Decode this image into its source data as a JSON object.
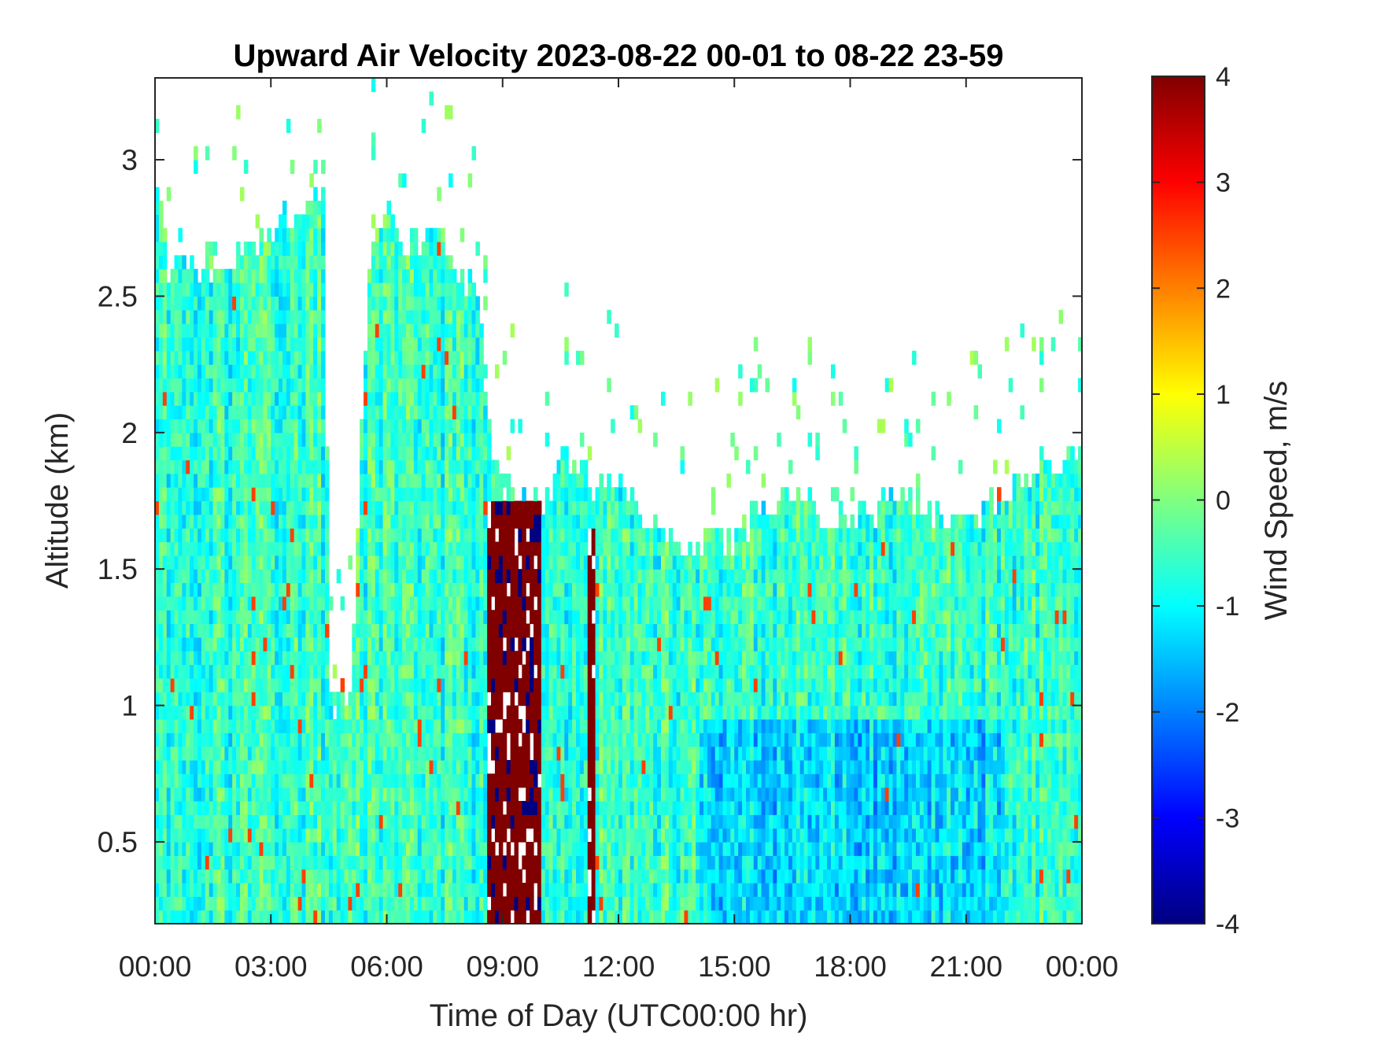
{
  "chart_data": {
    "type": "heatmap",
    "title": "Upward Air Velocity 2023-08-22 00-01 to 08-22 23-59",
    "xlabel": "Time of Day (UTC00:00 hr)",
    "ylabel": "Altitude (km)",
    "x_unit": "hours",
    "xlim": [
      0,
      24
    ],
    "ylim": [
      0.2,
      3.3
    ],
    "x_ticks": [
      0,
      3,
      6,
      9,
      12,
      15,
      18,
      21,
      24
    ],
    "x_tick_labels": [
      "00:00",
      "03:00",
      "06:00",
      "09:00",
      "12:00",
      "15:00",
      "18:00",
      "21:00",
      "00:00"
    ],
    "y_ticks": [
      0.5,
      1,
      1.5,
      2,
      2.5,
      3
    ],
    "y_tick_labels": [
      "0.5",
      "1",
      "1.5",
      "2",
      "2.5",
      "3"
    ],
    "colorbar": {
      "label": "Wind Speed, m/s",
      "colormap": "jet",
      "clim": [
        -4,
        4
      ],
      "ticks": [
        4,
        3,
        2,
        1,
        0,
        -1,
        -2,
        -3,
        -4
      ],
      "tick_labels": [
        "4",
        "3",
        "2",
        "1",
        "0",
        "-1",
        "-2",
        "-3",
        "-4"
      ]
    },
    "grid": false,
    "data_top_profile": {
      "description_hours": [
        0.0,
        0.3,
        0.8,
        1.5,
        2.5,
        3.3,
        4.3,
        4.5,
        5.0,
        5.5,
        6.0,
        6.5,
        7.0,
        7.5,
        8.0,
        8.3,
        8.6,
        9.0,
        9.5,
        10.2,
        10.5,
        11.0,
        11.3,
        11.7,
        12.0,
        12.5,
        13.0,
        13.5,
        14.0,
        14.5,
        15.0,
        15.5,
        16.0,
        16.5,
        17.0,
        17.5,
        18.0,
        18.5,
        19.0,
        19.5,
        20.0,
        20.5,
        21.0,
        21.5,
        22.0,
        22.5,
        23.0,
        23.5,
        24.0
      ],
      "top_km": [
        2.85,
        2.6,
        2.62,
        2.58,
        2.65,
        2.78,
        2.85,
        1.0,
        1.0,
        2.6,
        2.78,
        2.65,
        2.7,
        2.65,
        2.55,
        2.45,
        2.0,
        1.72,
        1.72,
        1.72,
        1.9,
        1.85,
        1.8,
        1.8,
        1.8,
        1.7,
        1.6,
        1.55,
        1.55,
        1.6,
        1.6,
        1.65,
        1.7,
        1.75,
        1.7,
        1.65,
        1.7,
        1.68,
        1.72,
        1.75,
        1.7,
        1.65,
        1.62,
        1.7,
        1.78,
        1.8,
        1.85,
        1.88,
        1.9
      ]
    },
    "strong_updraft_band": {
      "start_hour": 8.6,
      "end_hour": 10.0,
      "top_km": 1.72,
      "value_ms": 4
    },
    "secondary_updraft_band": {
      "start_hour": 11.2,
      "end_hour": 11.4,
      "top_km": 1.6,
      "value_ms": 4
    }
  }
}
